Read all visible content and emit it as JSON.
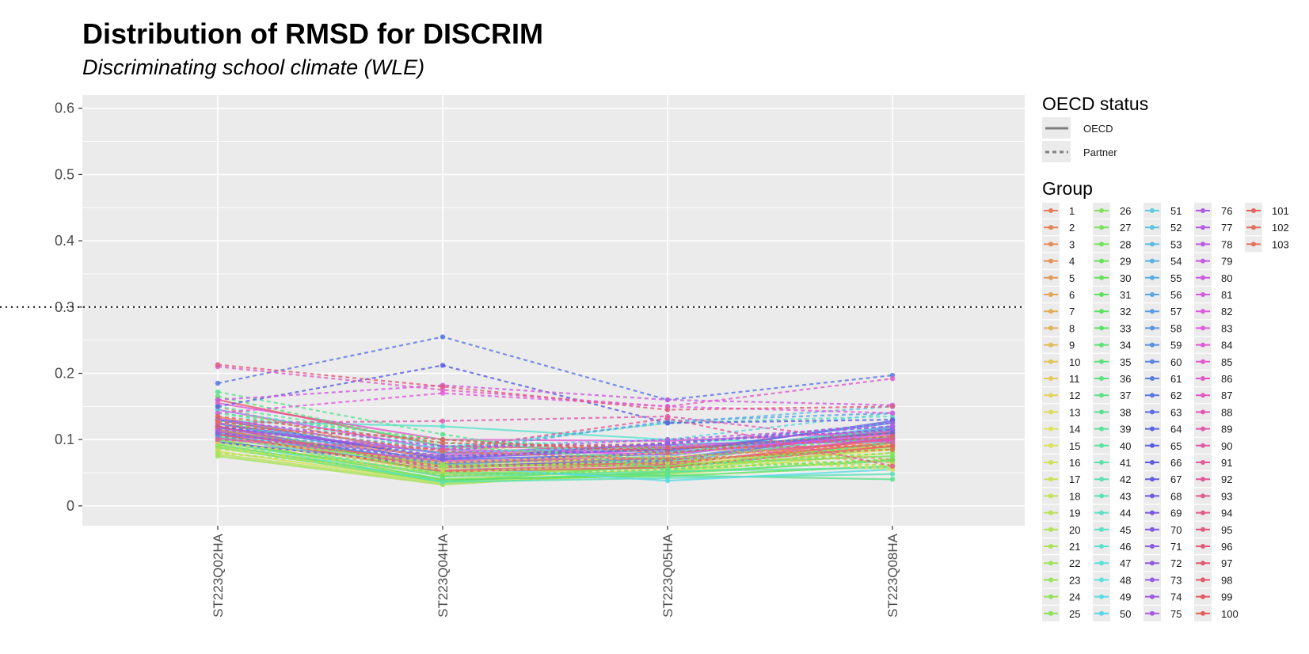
{
  "chart_data": {
    "type": "line",
    "title": "Distribution of RMSD for DISCRIM",
    "subtitle": "Discriminating school climate (WLE)",
    "xlabel": "",
    "ylabel": "",
    "categories": [
      "ST223Q02HA",
      "ST223Q04HA",
      "ST223Q05HA",
      "ST223Q08HA"
    ],
    "ylim": [
      -0.03,
      0.62
    ],
    "yticks": [
      "0",
      "0.1",
      "0.2",
      "0.3",
      "0.4",
      "0.5",
      "0.6"
    ],
    "reference_line": 0.3,
    "grid": true,
    "legend_position": "right",
    "linetype_legend": {
      "title": "OECD status",
      "entries": [
        {
          "label": "OECD",
          "style": "solid"
        },
        {
          "label": "Partner",
          "style": "dashed"
        }
      ]
    },
    "group_legend": {
      "title": "Group",
      "labels": [
        "1",
        "2",
        "3",
        "4",
        "5",
        "6",
        "7",
        "8",
        "9",
        "10",
        "11",
        "12",
        "13",
        "14",
        "15",
        "16",
        "17",
        "18",
        "19",
        "20",
        "21",
        "22",
        "23",
        "24",
        "25",
        "26",
        "27",
        "28",
        "29",
        "30",
        "31",
        "32",
        "33",
        "34",
        "35",
        "36",
        "37",
        "38",
        "39",
        "40",
        "41",
        "42",
        "43",
        "44",
        "45",
        "46",
        "47",
        "48",
        "49",
        "50",
        "51",
        "52",
        "53",
        "54",
        "55",
        "56",
        "57",
        "58",
        "59",
        "60",
        "61",
        "62",
        "63",
        "64",
        "65",
        "66",
        "67",
        "68",
        "69",
        "70",
        "71",
        "72",
        "73",
        "74",
        "75",
        "76",
        "77",
        "78",
        "79",
        "80",
        "81",
        "82",
        "83",
        "84",
        "85",
        "86",
        "87",
        "88",
        "89",
        "90",
        "91",
        "92",
        "93",
        "94",
        "95",
        "96",
        "97",
        "98",
        "99",
        "100",
        "101",
        "102",
        "103"
      ]
    },
    "series": [
      {
        "name": "1",
        "status": "OECD",
        "values": [
          0.12,
          0.058,
          0.072,
          0.098
        ]
      },
      {
        "name": "4",
        "status": "OECD",
        "values": [
          0.135,
          0.062,
          0.08,
          0.105
        ]
      },
      {
        "name": "7",
        "status": "OECD",
        "values": [
          0.108,
          0.05,
          0.066,
          0.09
        ]
      },
      {
        "name": "10",
        "status": "OECD",
        "values": [
          0.098,
          0.045,
          0.06,
          0.092
        ]
      },
      {
        "name": "13",
        "status": "OECD",
        "values": [
          0.09,
          0.04,
          0.055,
          0.085
        ]
      },
      {
        "name": "16",
        "status": "OECD",
        "values": [
          0.082,
          0.036,
          0.05,
          0.08
        ]
      },
      {
        "name": "19",
        "status": "OECD",
        "values": [
          0.078,
          0.034,
          0.048,
          0.07
        ]
      },
      {
        "name": "22",
        "status": "OECD",
        "values": [
          0.075,
          0.032,
          0.052,
          0.088
        ]
      },
      {
        "name": "25",
        "status": "OECD",
        "values": [
          0.095,
          0.048,
          0.058,
          0.095
        ]
      },
      {
        "name": "28",
        "status": "OECD",
        "values": [
          0.088,
          0.036,
          0.062,
          0.075
        ]
      },
      {
        "name": "31",
        "status": "OECD",
        "values": [
          0.1,
          0.04,
          0.045,
          0.06
        ]
      },
      {
        "name": "34",
        "status": "OECD",
        "values": [
          0.092,
          0.038,
          0.05,
          0.068
        ]
      },
      {
        "name": "37",
        "status": "OECD",
        "values": [
          0.115,
          0.05,
          0.046,
          0.04
        ]
      },
      {
        "name": "40",
        "status": "OECD",
        "values": [
          0.105,
          0.044,
          0.052,
          0.058
        ]
      },
      {
        "name": "43",
        "status": "OECD",
        "values": [
          0.098,
          0.036,
          0.042,
          0.048
        ]
      },
      {
        "name": "46",
        "status": "OECD",
        "values": [
          0.128,
          0.12,
          0.1,
          0.095
        ]
      },
      {
        "name": "49",
        "status": "OECD",
        "values": [
          0.11,
          0.06,
          0.038,
          0.055
        ]
      },
      {
        "name": "52",
        "status": "OECD",
        "values": [
          0.102,
          0.058,
          0.065,
          0.112
        ]
      },
      {
        "name": "55",
        "status": "OECD",
        "values": [
          0.118,
          0.062,
          0.075,
          0.12
        ]
      },
      {
        "name": "58",
        "status": "OECD",
        "values": [
          0.124,
          0.066,
          0.07,
          0.118
        ]
      },
      {
        "name": "61",
        "status": "OECD",
        "values": [
          0.112,
          0.064,
          0.082,
          0.125
        ]
      },
      {
        "name": "64",
        "status": "OECD",
        "values": [
          0.13,
          0.07,
          0.078,
          0.128
        ]
      },
      {
        "name": "67",
        "status": "OECD",
        "values": [
          0.096,
          0.06,
          0.068,
          0.115
        ]
      },
      {
        "name": "70",
        "status": "OECD",
        "values": [
          0.125,
          0.072,
          0.085,
          0.11
        ]
      },
      {
        "name": "73",
        "status": "OECD",
        "values": [
          0.118,
          0.08,
          0.092,
          0.102
        ]
      },
      {
        "name": "76",
        "status": "OECD",
        "values": [
          0.108,
          0.075,
          0.088,
          0.1
        ]
      },
      {
        "name": "79",
        "status": "OECD",
        "values": [
          0.132,
          0.078,
          0.09,
          0.098
        ]
      },
      {
        "name": "82",
        "status": "OECD",
        "values": [
          0.145,
          0.085,
          0.078,
          0.108
        ]
      },
      {
        "name": "85",
        "status": "OECD",
        "values": [
          0.155,
          0.1,
          0.098,
          0.112
        ]
      },
      {
        "name": "88",
        "status": "OECD",
        "values": [
          0.102,
          0.068,
          0.072,
          0.1
        ]
      },
      {
        "name": "91",
        "status": "OECD",
        "values": [
          0.112,
          0.058,
          0.065,
          0.095
        ]
      },
      {
        "name": "94",
        "status": "OECD",
        "values": [
          0.12,
          0.054,
          0.062,
          0.102
        ]
      },
      {
        "name": "97",
        "status": "OECD",
        "values": [
          0.16,
          0.09,
          0.085,
          0.11
        ]
      },
      {
        "name": "100",
        "status": "OECD",
        "values": [
          0.108,
          0.052,
          0.058,
          0.09
        ]
      },
      {
        "name": "103",
        "status": "OECD",
        "values": [
          0.115,
          0.06,
          0.064,
          0.095
        ]
      },
      {
        "name": "2",
        "status": "Partner",
        "values": [
          0.15,
          0.065,
          0.072,
          0.095
        ]
      },
      {
        "name": "5",
        "status": "Partner",
        "values": [
          0.125,
          0.085,
          0.095,
          0.07
        ]
      },
      {
        "name": "8",
        "status": "Partner",
        "values": [
          0.11,
          0.075,
          0.09,
          0.065
        ]
      },
      {
        "name": "11",
        "status": "Partner",
        "values": [
          0.1,
          0.065,
          0.08,
          0.06
        ]
      },
      {
        "name": "14",
        "status": "Partner",
        "values": [
          0.095,
          0.06,
          0.075,
          0.055
        ]
      },
      {
        "name": "17",
        "status": "Partner",
        "values": [
          0.085,
          0.055,
          0.07,
          0.058
        ]
      },
      {
        "name": "20",
        "status": "Partner",
        "values": [
          0.08,
          0.05,
          0.065,
          0.062
        ]
      },
      {
        "name": "23",
        "status": "Partner",
        "values": [
          0.09,
          0.058,
          0.068,
          0.085
        ]
      },
      {
        "name": "26",
        "status": "Partner",
        "values": [
          0.105,
          0.062,
          0.06,
          0.08
        ]
      },
      {
        "name": "29",
        "status": "Partner",
        "values": [
          0.13,
          0.045,
          0.055,
          0.07
        ]
      },
      {
        "name": "32",
        "status": "Partner",
        "values": [
          0.14,
          0.1,
          0.085,
          0.11
        ]
      },
      {
        "name": "35",
        "status": "Partner",
        "values": [
          0.165,
          0.09,
          0.07,
          0.105
        ]
      },
      {
        "name": "38",
        "status": "Partner",
        "values": [
          0.172,
          0.108,
          0.055,
          0.095
        ]
      },
      {
        "name": "41",
        "status": "Partner",
        "values": [
          0.15,
          0.095,
          0.08,
          0.115
        ]
      },
      {
        "name": "44",
        "status": "Partner",
        "values": [
          0.14,
          0.085,
          0.125,
          0.135
        ]
      },
      {
        "name": "47",
        "status": "Partner",
        "values": [
          0.13,
          0.08,
          0.09,
          0.125
        ]
      },
      {
        "name": "50",
        "status": "Partner",
        "values": [
          0.145,
          0.09,
          0.1,
          0.14
        ]
      },
      {
        "name": "53",
        "status": "Partner",
        "values": [
          0.12,
          0.088,
          0.125,
          0.15
        ]
      },
      {
        "name": "56",
        "status": "Partner",
        "values": [
          0.11,
          0.08,
          0.128,
          0.14
        ]
      },
      {
        "name": "59",
        "status": "Partner",
        "values": [
          0.105,
          0.07,
          0.095,
          0.12
        ]
      },
      {
        "name": "62",
        "status": "Partner",
        "values": [
          0.185,
          0.255,
          0.16,
          0.197
        ]
      },
      {
        "name": "65",
        "status": "Partner",
        "values": [
          0.15,
          0.212,
          0.125,
          0.13
        ]
      },
      {
        "name": "68",
        "status": "Partner",
        "values": [
          0.12,
          0.075,
          0.085,
          0.11
        ]
      },
      {
        "name": "71",
        "status": "Partner",
        "values": [
          0.11,
          0.07,
          0.095,
          0.115
        ]
      },
      {
        "name": "74",
        "status": "Partner",
        "values": [
          0.13,
          0.09,
          0.092,
          0.125
        ]
      },
      {
        "name": "77",
        "status": "Partner",
        "values": [
          0.115,
          0.085,
          0.1,
          0.12
        ]
      },
      {
        "name": "80",
        "status": "Partner",
        "values": [
          0.16,
          0.182,
          0.16,
          0.152
        ]
      },
      {
        "name": "83",
        "status": "Partner",
        "values": [
          0.14,
          0.17,
          0.15,
          0.14
        ]
      },
      {
        "name": "86",
        "status": "Partner",
        "values": [
          0.21,
          0.175,
          0.15,
          0.192
        ]
      },
      {
        "name": "89",
        "status": "Partner",
        "values": [
          0.125,
          0.128,
          0.135,
          0.095
        ]
      },
      {
        "name": "92",
        "status": "Partner",
        "values": [
          0.1,
          0.085,
          0.132,
          0.06
        ]
      },
      {
        "name": "95",
        "status": "Partner",
        "values": [
          0.213,
          0.18,
          0.145,
          0.15
        ]
      },
      {
        "name": "98",
        "status": "Partner",
        "values": [
          0.12,
          0.1,
          0.08,
          0.105
        ]
      },
      {
        "name": "101",
        "status": "Partner",
        "values": [
          0.135,
          0.095,
          0.088,
          0.09
        ]
      },
      {
        "name": "102",
        "status": "Partner",
        "values": [
          0.128,
          0.082,
          0.07,
          0.085
        ]
      }
    ]
  }
}
